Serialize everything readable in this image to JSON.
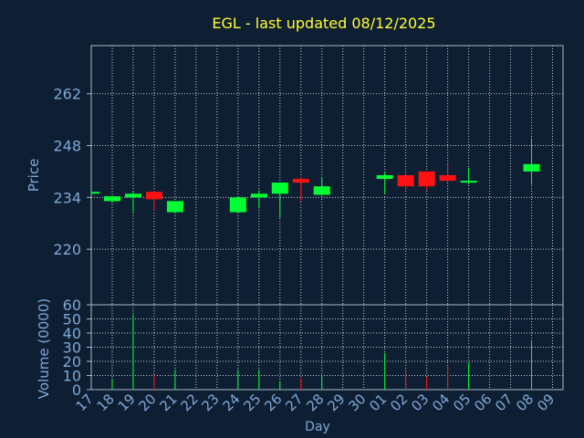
{
  "title": "EGL - last updated 08/12/2025",
  "colors": {
    "background": "#0f1f33",
    "title": "#ffff33",
    "axis_text": "#7ea8d8",
    "frame": "#a8b8c8",
    "grid": "#c8d0d8",
    "up": "#00ff33",
    "down": "#ff1111"
  },
  "chart_data": [
    {
      "type": "candlestick",
      "ylabel": "Price",
      "ylim": [
        205,
        275
      ],
      "yticks": [
        220,
        234,
        248,
        262
      ],
      "grid": true,
      "x": [
        "17",
        "18",
        "19",
        "20",
        "21",
        "22",
        "23",
        "24",
        "25",
        "26",
        "27",
        "28",
        "29",
        "30",
        "01",
        "02",
        "03",
        "04",
        "05",
        "06",
        "07",
        "08",
        "09"
      ],
      "candles": [
        {
          "day": "17",
          "open": 235.3,
          "high": 235.5,
          "low": 235.0,
          "close": 235.5
        },
        {
          "day": "18",
          "open": 233.0,
          "high": 234.5,
          "low": 232.5,
          "close": 234.3
        },
        {
          "day": "19",
          "open": 234.0,
          "high": 235.5,
          "low": 230.0,
          "close": 235.0
        },
        {
          "day": "20",
          "open": 235.5,
          "high": 235.8,
          "low": 230.5,
          "close": 233.5
        },
        {
          "day": "21",
          "open": 230.0,
          "high": 233.0,
          "low": 229.7,
          "close": 233.0
        },
        {
          "day": "24",
          "open": 230.0,
          "high": 234.2,
          "low": 229.7,
          "close": 234.0
        },
        {
          "day": "25",
          "open": 234.0,
          "high": 236.0,
          "low": 231.0,
          "close": 235.0
        },
        {
          "day": "26",
          "open": 235.0,
          "high": 238.0,
          "low": 228.5,
          "close": 238.0
        },
        {
          "day": "27",
          "open": 239.0,
          "high": 239.5,
          "low": 233.0,
          "close": 238.0
        },
        {
          "day": "28",
          "open": 234.7,
          "high": 239.5,
          "low": 234.5,
          "close": 237.0
        },
        {
          "day": "01",
          "open": 239.0,
          "high": 241.0,
          "low": 235.0,
          "close": 240.0
        },
        {
          "day": "02",
          "open": 240.0,
          "high": 240.5,
          "low": 236.0,
          "close": 237.0
        },
        {
          "day": "03",
          "open": 241.0,
          "high": 241.0,
          "low": 236.0,
          "close": 237.0
        },
        {
          "day": "04",
          "open": 240.0,
          "high": 243.0,
          "low": 238.0,
          "close": 238.5
        },
        {
          "day": "05",
          "open": 238.0,
          "high": 242.0,
          "low": 237.5,
          "close": 238.5
        },
        {
          "day": "08",
          "open": 241.0,
          "high": 250.0,
          "low": 237.5,
          "close": 243.0
        }
      ]
    },
    {
      "type": "bar",
      "ylabel": "Volume (0000)",
      "xlabel": "Day",
      "ylim": [
        0,
        60
      ],
      "yticks": [
        0,
        10,
        20,
        30,
        40,
        50,
        60
      ],
      "grid": true,
      "bars": [
        {
          "day": "18",
          "value": 8,
          "direction": "up"
        },
        {
          "day": "19",
          "value": 53,
          "direction": "up"
        },
        {
          "day": "20",
          "value": 11,
          "direction": "down"
        },
        {
          "day": "21",
          "value": 14,
          "direction": "up"
        },
        {
          "day": "24",
          "value": 14,
          "direction": "up"
        },
        {
          "day": "25",
          "value": 14,
          "direction": "up"
        },
        {
          "day": "26",
          "value": 6,
          "direction": "up"
        },
        {
          "day": "27",
          "value": 8,
          "direction": "down"
        },
        {
          "day": "28",
          "value": 9,
          "direction": "up"
        },
        {
          "day": "01",
          "value": 26,
          "direction": "up"
        },
        {
          "day": "02",
          "value": 14,
          "direction": "down"
        },
        {
          "day": "03",
          "value": 9,
          "direction": "down"
        },
        {
          "day": "04",
          "value": 17,
          "direction": "down"
        },
        {
          "day": "05",
          "value": 19,
          "direction": "up"
        },
        {
          "day": "08",
          "value": 34,
          "direction": "up"
        }
      ]
    }
  ]
}
